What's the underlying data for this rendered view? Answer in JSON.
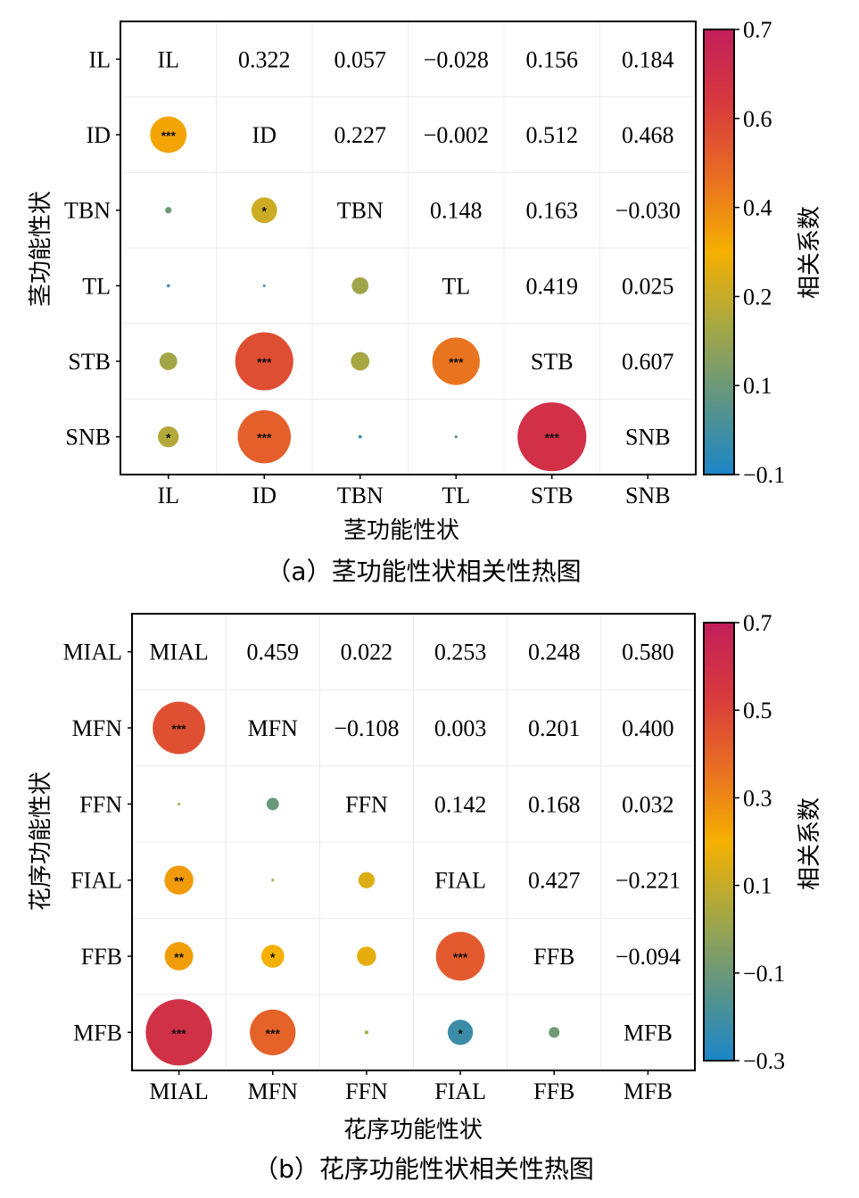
{
  "chart_data": [
    {
      "type": "heatmap",
      "caption": "（a）茎功能性状相关性热图",
      "xlabel": "茎功能性状",
      "ylabel": "茎功能性状",
      "colorbar_label": "相关系数",
      "labels": [
        "IL",
        "ID",
        "TBN",
        "TL",
        "STB",
        "SNB"
      ],
      "colorbar_ticks": [
        "0.7",
        "0.6",
        "0.4",
        "0.2",
        "0.1",
        "−0.1"
      ],
      "colorbar_range": [
        -0.1,
        0.7
      ],
      "upper_values": [
        [
          "",
          "0.322",
          "0.057",
          "−0.028",
          "0.156",
          "0.184"
        ],
        [
          "",
          "",
          "0.227",
          "−0.002",
          "0.512",
          "0.468"
        ],
        [
          "",
          "",
          "",
          "0.148",
          "0.163",
          "−0.030"
        ],
        [
          "",
          "",
          "",
          "",
          "0.419",
          "0.025"
        ],
        [
          "",
          "",
          "",
          "",
          "",
          "0.607"
        ],
        [
          "",
          "",
          "",
          "",
          "",
          ""
        ]
      ],
      "lower_cells": [
        {
          "row": 1,
          "col": 0,
          "r": 0.322,
          "sig": "***"
        },
        {
          "row": 2,
          "col": 0,
          "r": 0.057,
          "sig": ""
        },
        {
          "row": 2,
          "col": 1,
          "r": 0.227,
          "sig": "*"
        },
        {
          "row": 3,
          "col": 0,
          "r": -0.028,
          "sig": ""
        },
        {
          "row": 3,
          "col": 1,
          "r": -0.002,
          "sig": ""
        },
        {
          "row": 3,
          "col": 2,
          "r": 0.148,
          "sig": ""
        },
        {
          "row": 4,
          "col": 0,
          "r": 0.156,
          "sig": ""
        },
        {
          "row": 4,
          "col": 1,
          "r": 0.512,
          "sig": "***"
        },
        {
          "row": 4,
          "col": 2,
          "r": 0.163,
          "sig": ""
        },
        {
          "row": 4,
          "col": 3,
          "r": 0.419,
          "sig": "***"
        },
        {
          "row": 5,
          "col": 0,
          "r": 0.184,
          "sig": "*"
        },
        {
          "row": 5,
          "col": 1,
          "r": 0.468,
          "sig": "***"
        },
        {
          "row": 5,
          "col": 2,
          "r": -0.03,
          "sig": ""
        },
        {
          "row": 5,
          "col": 3,
          "r": 0.025,
          "sig": ""
        },
        {
          "row": 5,
          "col": 4,
          "r": 0.607,
          "sig": "***"
        }
      ]
    },
    {
      "type": "heatmap",
      "caption": "（b）花序功能性状相关性热图",
      "xlabel": "花序功能性状",
      "ylabel": "花序功能性状",
      "colorbar_label": "相关系数",
      "labels": [
        "MIAL",
        "MFN",
        "FFN",
        "FIAL",
        "FFB",
        "MFB"
      ],
      "colorbar_ticks": [
        "0.7",
        "0.5",
        "0.3",
        "0.1",
        "−0.1",
        "−0.3"
      ],
      "colorbar_range": [
        -0.3,
        0.7
      ],
      "upper_values": [
        [
          "",
          "0.459",
          "0.022",
          "0.253",
          "0.248",
          "0.580"
        ],
        [
          "",
          "",
          "−0.108",
          "0.003",
          "0.201",
          "0.400"
        ],
        [
          "",
          "",
          "",
          "0.142",
          "0.168",
          "0.032"
        ],
        [
          "",
          "",
          "",
          "",
          "0.427",
          "−0.221"
        ],
        [
          "",
          "",
          "",
          "",
          "",
          "−0.094"
        ],
        [
          "",
          "",
          "",
          "",
          "",
          ""
        ]
      ],
      "lower_cells": [
        {
          "row": 1,
          "col": 0,
          "r": 0.459,
          "sig": "***"
        },
        {
          "row": 2,
          "col": 0,
          "r": 0.022,
          "sig": ""
        },
        {
          "row": 2,
          "col": 1,
          "r": -0.108,
          "sig": ""
        },
        {
          "row": 3,
          "col": 0,
          "r": 0.253,
          "sig": "**"
        },
        {
          "row": 3,
          "col": 1,
          "r": 0.003,
          "sig": ""
        },
        {
          "row": 3,
          "col": 2,
          "r": 0.142,
          "sig": ""
        },
        {
          "row": 4,
          "col": 0,
          "r": 0.248,
          "sig": "**"
        },
        {
          "row": 4,
          "col": 1,
          "r": 0.201,
          "sig": "*"
        },
        {
          "row": 4,
          "col": 2,
          "r": 0.168,
          "sig": ""
        },
        {
          "row": 4,
          "col": 3,
          "r": 0.427,
          "sig": "***"
        },
        {
          "row": 5,
          "col": 0,
          "r": 0.58,
          "sig": "***"
        },
        {
          "row": 5,
          "col": 1,
          "r": 0.4,
          "sig": "***"
        },
        {
          "row": 5,
          "col": 2,
          "r": 0.032,
          "sig": ""
        },
        {
          "row": 5,
          "col": 3,
          "r": -0.221,
          "sig": "*"
        },
        {
          "row": 5,
          "col": 4,
          "r": -0.094,
          "sig": ""
        }
      ]
    }
  ],
  "colormap": [
    "#1a86c8",
    "#5f9583",
    "#a9a841",
    "#f5b000",
    "#e86d23",
    "#d7383e",
    "#c21f5b"
  ]
}
